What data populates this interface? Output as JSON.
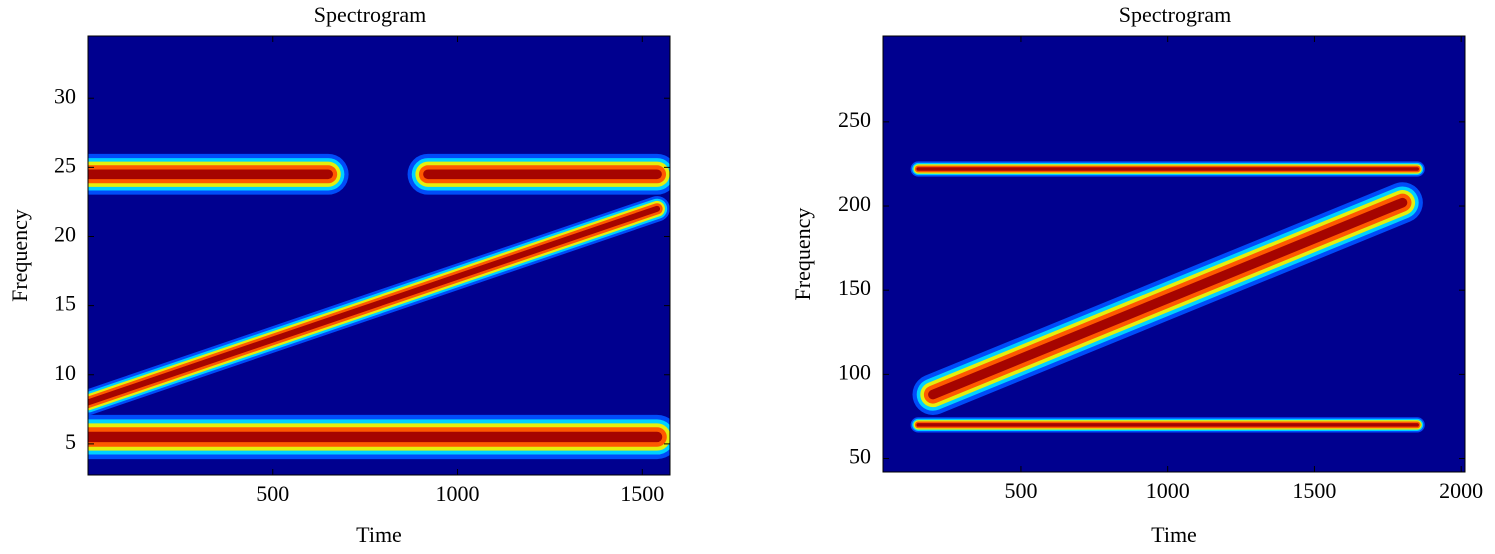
{
  "chart_data": [
    {
      "type": "spectrogram",
      "title": "Spectrogram",
      "xlabel": "Time",
      "ylabel": "Frequency",
      "background": "#00008f",
      "xlim": [
        0,
        1575
      ],
      "xticks": [
        500,
        1000,
        1500
      ],
      "ylim": [
        2.75,
        34.5
      ],
      "yticks": [
        5,
        10,
        15,
        20,
        25,
        30
      ],
      "series": [
        {
          "x": [
            0,
            650
          ],
          "values": [
            24.5,
            24.5
          ]
        },
        {
          "x": [
            920,
            1540
          ],
          "values": [
            24.5,
            24.5
          ]
        },
        {
          "x": [
            0,
            1540
          ],
          "values": [
            5.5,
            5.5
          ]
        },
        {
          "x": [
            0,
            1540
          ],
          "values": [
            8,
            22
          ]
        }
      ]
    },
    {
      "type": "spectrogram",
      "title": "Spectrogram",
      "xlabel": "Time",
      "ylabel": "Frequency",
      "background": "#00008f",
      "xlim": [
        30,
        2013
      ],
      "xticks": [
        500,
        1000,
        1500,
        2000
      ],
      "ylim": [
        42,
        301
      ],
      "yticks": [
        50,
        100,
        150,
        200,
        250
      ],
      "series": [
        {
          "x": [
            150,
            1850
          ],
          "values": [
            222,
            222
          ]
        },
        {
          "x": [
            150,
            1850
          ],
          "values": [
            70,
            70
          ]
        },
        {
          "x": [
            200,
            1800
          ],
          "values": [
            88,
            202
          ]
        }
      ]
    }
  ]
}
